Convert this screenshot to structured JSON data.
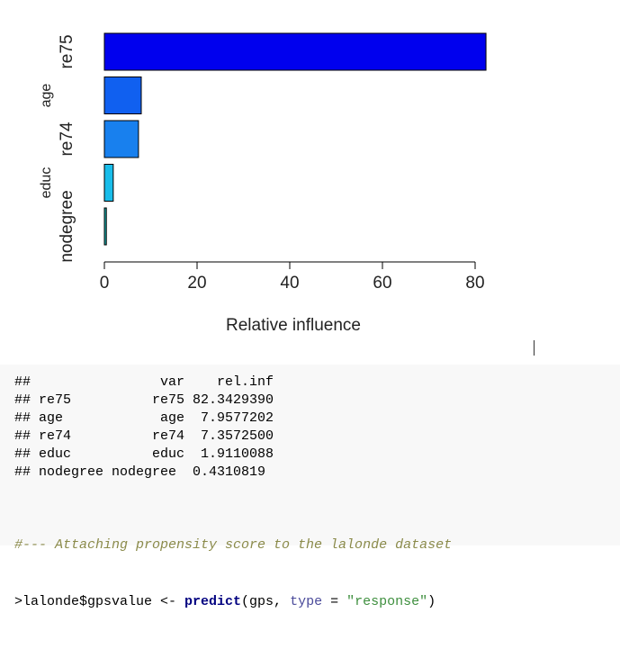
{
  "colors": {
    "bar_colors": [
      "#0000ee",
      "#1060f0",
      "#1880ee",
      "#19bdea",
      "#17a7a7"
    ],
    "axis": "#000000"
  },
  "chart_data": {
    "type": "bar",
    "orientation": "horizontal",
    "categories": [
      "re75",
      "age",
      "re74",
      "educ",
      "nodegree"
    ],
    "values": [
      82.342939,
      7.9577202,
      7.35725,
      1.9110088,
      0.4310819
    ],
    "xlabel": "Relative influence",
    "ylabel": "",
    "xlim": [
      0,
      83
    ],
    "x_ticks": [
      "0",
      "20",
      "40",
      "60",
      "80"
    ],
    "grid": false
  },
  "console": {
    "summary_lines": [
      "##                var    rel.inf",
      "## re75          re75 82.3429390",
      "## age            age  7.9577202",
      "## re74          re74  7.3572500",
      "## educ          educ  1.9110088",
      "## nodegree nodegree  0.4310819"
    ],
    "comment": "#--- Attaching propensity score to the lalonde dataset",
    "code": {
      "prefix": ">lalonde$gpsvalue <- ",
      "func": "predict",
      "open": "(gps, ",
      "arg": "type",
      "eq": " = ",
      "str": "\"response\"",
      "close": ")"
    }
  }
}
